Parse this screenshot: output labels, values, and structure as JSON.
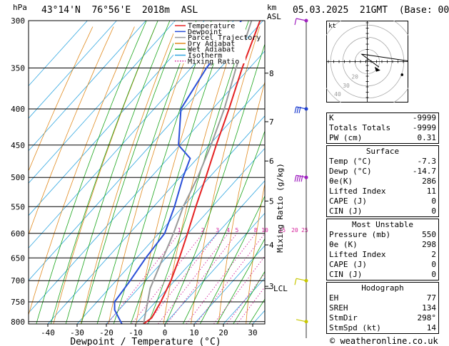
{
  "header": {
    "p_unit": "hPa",
    "location": "43°14'N  76°56'E  2018m  ASL",
    "km_label": "km",
    "asl_label": "ASL",
    "datetime": "05.03.2025  21GMT  (Base: 00)"
  },
  "footer": {
    "copyright": "© weatheronline.co.uk"
  },
  "chart_data": {
    "type": "skew-t log-p",
    "xlabel": "Dewpoint / Temperature (°C)",
    "ylabel_right": "Mixing Ratio (g/kg)",
    "pressure_levels": [
      300,
      350,
      400,
      450,
      500,
      550,
      600,
      650,
      700,
      750,
      800
    ],
    "temp_ticks": [
      -40,
      -30,
      -20,
      -10,
      0,
      10,
      20,
      30
    ],
    "km_ticks": [
      {
        "label": "8",
        "p": 356
      },
      {
        "label": "7",
        "p": 417
      },
      {
        "label": "6",
        "p": 474
      },
      {
        "label": "5",
        "p": 540
      },
      {
        "label": "4",
        "p": 623
      },
      {
        "label": "3",
        "p": 713
      }
    ],
    "mixing_ratio_labels": [
      "1",
      "2",
      "3",
      "4",
      "5",
      "8",
      "10",
      "15",
      "20",
      "25"
    ],
    "mixing_ratio_values": [
      1,
      2,
      3,
      4,
      5,
      8,
      10,
      15,
      20,
      25
    ],
    "lcl_label": "LCL",
    "lcl_pressure": 718,
    "legend": [
      {
        "label": "Temperature",
        "color": "#e52222"
      },
      {
        "label": "Dewpoint",
        "color": "#2a4fd8"
      },
      {
        "label": "Parcel Trajectory",
        "color": "#9a9a9a"
      },
      {
        "label": "Dry Adiabat",
        "color": "#e08a1e"
      },
      {
        "label": "Wet Adiabat",
        "color": "#1aa51a"
      },
      {
        "label": "Isotherm",
        "color": "#2fa6e0"
      },
      {
        "label": "Mixing Ratio",
        "color": "#d5229b"
      }
    ],
    "temperature": [
      {
        "p": 806,
        "t": -7.3
      },
      {
        "p": 790,
        "t": -6.4
      },
      {
        "p": 750,
        "t": -8.2
      },
      {
        "p": 700,
        "t": -11.3
      },
      {
        "p": 650,
        "t": -15.4
      },
      {
        "p": 600,
        "t": -20.2
      },
      {
        "p": 550,
        "t": -25.6
      },
      {
        "p": 500,
        "t": -31.2
      },
      {
        "p": 450,
        "t": -37.6
      },
      {
        "p": 400,
        "t": -44.4
      },
      {
        "p": 350,
        "t": -52.5
      },
      {
        "p": 300,
        "t": -61.0
      }
    ],
    "dewpoint": [
      {
        "p": 806,
        "t": -14.7
      },
      {
        "p": 770,
        "t": -21.5
      },
      {
        "p": 750,
        "t": -24.0
      },
      {
        "p": 700,
        "t": -25.2
      },
      {
        "p": 650,
        "t": -26.9
      },
      {
        "p": 600,
        "t": -28.0
      },
      {
        "p": 550,
        "t": -32.9
      },
      {
        "p": 500,
        "t": -39.0
      },
      {
        "p": 470,
        "t": -42.4
      },
      {
        "p": 450,
        "t": -50.5
      },
      {
        "p": 400,
        "t": -60.8
      },
      {
        "p": 350,
        "t": -64.7
      },
      {
        "p": 300,
        "t": -67.4
      }
    ],
    "parcel": [
      {
        "p": 806,
        "t": -7.3
      },
      {
        "p": 718,
        "t": -16.0
      },
      {
        "p": 650,
        "t": -21.0
      },
      {
        "p": 600,
        "t": -25.0
      },
      {
        "p": 550,
        "t": -29.9
      },
      {
        "p": 500,
        "t": -34.0
      },
      {
        "p": 450,
        "t": -39.4
      },
      {
        "p": 400,
        "t": -46.0
      },
      {
        "p": 350,
        "t": -54.6
      },
      {
        "p": 300,
        "t": -63.9
      }
    ],
    "wind_barbs": [
      {
        "p": 300,
        "dir": 300,
        "kt": 10
      },
      {
        "p": 400,
        "dir": 280,
        "kt": 25
      },
      {
        "p": 500,
        "dir": 270,
        "kt": 35
      },
      {
        "p": 700,
        "dir": 280,
        "kt": 5
      },
      {
        "p": 800,
        "dir": 290,
        "kt": 3
      }
    ],
    "hodograph": {
      "label": "kt",
      "ring_labels": [
        "10",
        "20",
        "30",
        "40"
      ],
      "u": [
        3.2,
        -1.5,
        -1.2,
        12.4,
        16.0
      ],
      "v": [
        -1.5,
        2.0,
        2.0,
        0.0,
        -1.5
      ],
      "storm_motion": {
        "u": 3.0,
        "v": -2.0
      },
      "marker": {
        "u": 9.5,
        "v": -3.6
      }
    }
  },
  "indices": {
    "basic": [
      {
        "label": "K",
        "value": "-9999"
      },
      {
        "label": "Totals Totals",
        "value": "-9999"
      },
      {
        "label": "PW (cm)",
        "value": "0.31"
      }
    ],
    "surface": {
      "title": "Surface",
      "rows": [
        {
          "label": "Temp (°C)",
          "value": "-7.3"
        },
        {
          "label": "Dewp (°C)",
          "value": "-14.7"
        },
        {
          "label": "θe(K)",
          "value": "286"
        },
        {
          "label": "Lifted Index",
          "value": "11"
        },
        {
          "label": "CAPE (J)",
          "value": "0"
        },
        {
          "label": "CIN (J)",
          "value": "0"
        }
      ]
    },
    "most_unstable": {
      "title": "Most Unstable",
      "rows": [
        {
          "label": "Pressure (mb)",
          "value": "550"
        },
        {
          "label": "θe (K)",
          "value": "298"
        },
        {
          "label": "Lifted Index",
          "value": "2"
        },
        {
          "label": "CAPE (J)",
          "value": "0"
        },
        {
          "label": "CIN (J)",
          "value": "0"
        }
      ]
    },
    "hodograph": {
      "title": "Hodograph",
      "rows": [
        {
          "label": "EH",
          "value": "77"
        },
        {
          "label": "SREH",
          "value": "134"
        },
        {
          "label": "StmDir",
          "value": "298°"
        },
        {
          "label": "StmSpd (kt)",
          "value": "14"
        }
      ]
    }
  }
}
